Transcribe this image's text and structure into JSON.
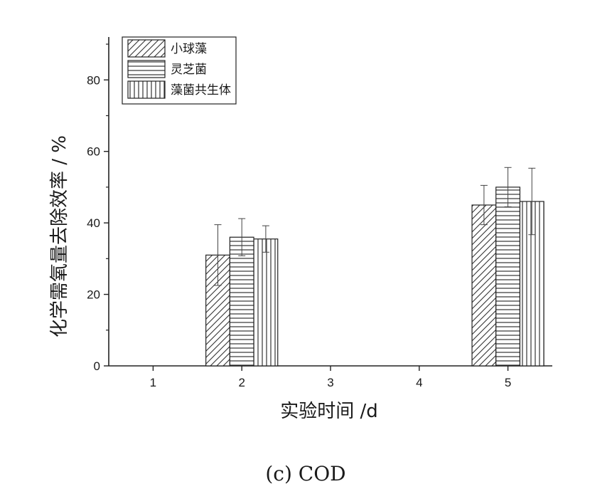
{
  "caption": "(c) COD",
  "chart_data": {
    "type": "bar",
    "title": "",
    "xlabel": "实验时间 /d",
    "ylabel": "化学需氧量去除效率 / %",
    "x_ticks": [
      "1",
      "2",
      "3",
      "4",
      "5"
    ],
    "y_ticks": [
      "0",
      "20",
      "40",
      "60",
      "80"
    ],
    "ylim": [
      0,
      92
    ],
    "xlim": [
      0.5,
      5.5
    ],
    "grid": false,
    "legend_position": "top-left",
    "series": [
      {
        "name": "小球藻",
        "pattern": "diagonal-hatch",
        "points": [
          {
            "x": 2,
            "y": 31,
            "err": 8.5
          },
          {
            "x": 5,
            "y": 45,
            "err": 5.5
          }
        ]
      },
      {
        "name": "灵芝菌",
        "pattern": "horizontal-lines",
        "points": [
          {
            "x": 2,
            "y": 36,
            "err": 5.2
          },
          {
            "x": 5,
            "y": 50,
            "err": 5.5
          }
        ]
      },
      {
        "name": "藻菌共生体",
        "pattern": "vertical-lines",
        "points": [
          {
            "x": 2,
            "y": 35.5,
            "err": 3.7
          },
          {
            "x": 5,
            "y": 46,
            "err": 9.3
          }
        ]
      }
    ]
  }
}
